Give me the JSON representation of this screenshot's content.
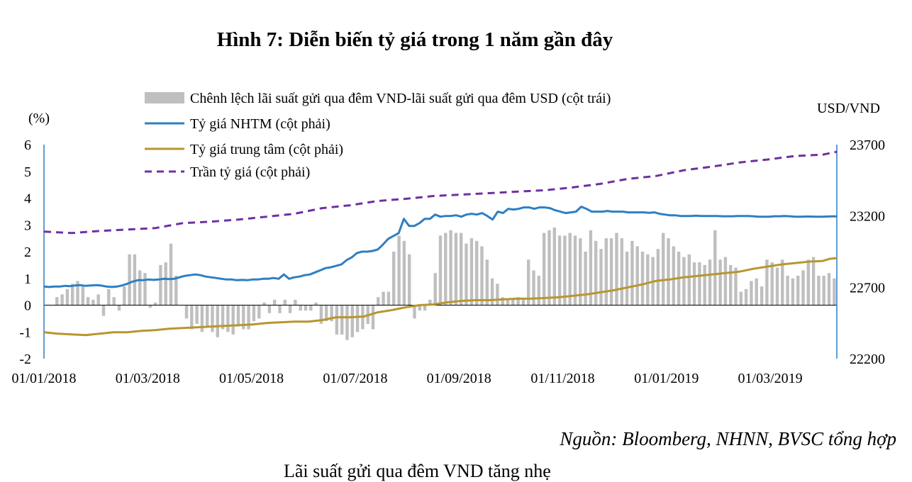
{
  "title": "Hình 7: Diễn biến tỷ giá trong 1 năm gần đây",
  "source": "Nguồn: Bloomberg, NHNN, BVSC tổng hợp",
  "colors": {
    "bar": "#bfbfbf",
    "nhtm": "#2e7fc2",
    "central": "#b8962e",
    "ceiling": "#7030a0",
    "axis": "#2e7fc2"
  },
  "chart_data": {
    "type": "combo",
    "left_axis": {
      "unit": "(%)",
      "range": [
        -2,
        6
      ],
      "ticks": [
        "6",
        "5",
        "4",
        "3",
        "2",
        "1",
        "0",
        "-1",
        "-2"
      ]
    },
    "right_axis": {
      "unit": "USD/VND",
      "range": [
        22200,
        23700
      ],
      "ticks": [
        "23700",
        "23200",
        "22700",
        "22200"
      ]
    },
    "x_ticks": [
      "01/01/2018",
      "01/03/2018",
      "01/05/2018",
      "01/07/2018",
      "01/09/2018",
      "01/11/2018",
      "01/01/2019",
      "01/03/2019"
    ],
    "legend": [
      "Chênh lệch  lãi suất gửi qua đêm VND-lãi   suất gửi qua đêm USD  (cột trái)",
      "Tỷ giá NHTM (cột phải)",
      "Tỷ giá trung tâm (cột phải)",
      "Trần tỷ giá (cột phải)"
    ],
    "series": [
      {
        "name": "Chênh lệch  lãi suất gửi qua đêm VND-lãi   suất gửi qua đêm USD  (cột trái)",
        "type": "bar",
        "axis": "left",
        "values": [
          0.0,
          0.0,
          0.3,
          0.4,
          0.6,
          0.8,
          0.9,
          0.7,
          0.3,
          0.2,
          0.4,
          -0.4,
          0.6,
          0.3,
          -0.2,
          0.7,
          1.9,
          1.9,
          1.3,
          1.2,
          -0.1,
          0.1,
          1.5,
          1.6,
          2.3,
          1.1,
          0.0,
          -0.5,
          -0.9,
          -0.7,
          -1.0,
          -0.8,
          -1.0,
          -1.2,
          -0.9,
          -1.0,
          -1.1,
          -0.8,
          -0.9,
          -0.9,
          -0.6,
          -0.5,
          0.1,
          -0.3,
          0.2,
          -0.3,
          0.2,
          -0.3,
          0.2,
          -0.2,
          -0.2,
          -0.2,
          0.1,
          -0.7,
          -0.6,
          -0.6,
          -1.1,
          -1.1,
          -1.3,
          -1.2,
          -1.0,
          -0.9,
          -0.7,
          -0.9,
          0.3,
          0.5,
          0.5,
          2.0,
          2.6,
          2.4,
          1.9,
          -0.5,
          -0.2,
          -0.2,
          0.2,
          1.2,
          2.6,
          2.7,
          2.8,
          2.7,
          2.7,
          2.3,
          2.5,
          2.4,
          2.2,
          1.7,
          1.0,
          0.8,
          0.3,
          0.2,
          0.2,
          0.3,
          0.2,
          1.7,
          1.3,
          1.1,
          2.7,
          2.8,
          2.9,
          2.6,
          2.6,
          2.7,
          2.6,
          2.5,
          2.0,
          2.8,
          2.4,
          2.1,
          2.5,
          2.5,
          2.7,
          2.5,
          2.0,
          2.4,
          2.2,
          2.0,
          1.9,
          1.8,
          2.1,
          2.7,
          2.5,
          2.2,
          2.0,
          1.8,
          1.9,
          1.6,
          1.6,
          1.5,
          1.7,
          2.8,
          1.7,
          1.8,
          1.5,
          1.4,
          0.5,
          0.6,
          0.9,
          1.0,
          0.7,
          1.7,
          1.6,
          1.4,
          1.7,
          1.1,
          1.0,
          1.1,
          1.3,
          1.7,
          1.8,
          1.1,
          1.1,
          1.2,
          1.0
        ]
      },
      {
        "name": "Tỷ giá NHTM (cột phải)",
        "type": "line",
        "axis": "right",
        "x": [
          0,
          3,
          6,
          9,
          12,
          15,
          18,
          21,
          24,
          27,
          30,
          33,
          36,
          39,
          42,
          45,
          48,
          51,
          54,
          57,
          60,
          63,
          66,
          69,
          72,
          75,
          78,
          81,
          84,
          87,
          90,
          93,
          96,
          99,
          102,
          105,
          108,
          111,
          114,
          117,
          120,
          123,
          126,
          129,
          132,
          135,
          138,
          141,
          144,
          147,
          150,
          153,
          156,
          159,
          162,
          165,
          168,
          171,
          174,
          177,
          180,
          183,
          186,
          189,
          192,
          195,
          198,
          201,
          204,
          207,
          210,
          213,
          216,
          219,
          222,
          225,
          228,
          231,
          234,
          237,
          240,
          243,
          246,
          249,
          252,
          255,
          258,
          261,
          264,
          267,
          270,
          273,
          276,
          279,
          282,
          285,
          288,
          291,
          294,
          297,
          300,
          303,
          306,
          309,
          312,
          315,
          318,
          321,
          324,
          327,
          330,
          333,
          336,
          339,
          342,
          345,
          348,
          351,
          354,
          357,
          360,
          363,
          366,
          369,
          372,
          375,
          378,
          381,
          384,
          387,
          390,
          393,
          396,
          399,
          402,
          405,
          408,
          411,
          414,
          417,
          420,
          423,
          426,
          429,
          432,
          435,
          438,
          441,
          444,
          447,
          450,
          453,
          456
        ],
        "values": [
          22705,
          22702,
          22705,
          22705,
          22710,
          22708,
          22713,
          22715,
          22710,
          22713,
          22715,
          22712,
          22705,
          22702,
          22705,
          22713,
          22725,
          22740,
          22750,
          22750,
          22755,
          22752,
          22755,
          22760,
          22758,
          22760,
          22770,
          22780,
          22785,
          22790,
          22785,
          22775,
          22770,
          22765,
          22760,
          22755,
          22755,
          22750,
          22752,
          22750,
          22755,
          22755,
          22760,
          22760,
          22765,
          22760,
          22790,
          22760,
          22770,
          22775,
          22785,
          22790,
          22805,
          22820,
          22835,
          22840,
          22850,
          22860,
          22890,
          22910,
          22940,
          22950,
          22950,
          22955,
          22965,
          23000,
          23040,
          23060,
          23080,
          23180,
          23130,
          23130,
          23150,
          23180,
          23180,
          23210,
          23195,
          23200,
          23200,
          23205,
          23195,
          23210,
          23215,
          23210,
          23220,
          23200,
          23175,
          23230,
          23220,
          23250,
          23245,
          23250,
          23260,
          23260,
          23250,
          23260,
          23260,
          23255,
          23240,
          23230,
          23220,
          23225,
          23230,
          23265,
          23250,
          23230,
          23230,
          23230,
          23235,
          23230,
          23230,
          23230,
          23225,
          23225,
          23225,
          23225,
          23222,
          23225,
          23215,
          23210,
          23205,
          23205,
          23200,
          23200,
          23200,
          23202,
          23200,
          23200,
          23200,
          23200,
          23198,
          23198,
          23198,
          23200,
          23200,
          23200,
          23198,
          23195,
          23195,
          23195,
          23198,
          23198,
          23200,
          23198,
          23195,
          23195,
          23196,
          23196,
          23195,
          23195,
          23196,
          23197,
          23197
        ]
      },
      {
        "name": "Tỷ giá trung tâm (cột phải)",
        "type": "line",
        "axis": "right",
        "x": [
          0,
          8,
          16,
          24,
          32,
          40,
          48,
          56,
          64,
          72,
          80,
          88,
          96,
          104,
          112,
          120,
          128,
          136,
          144,
          152,
          160,
          168,
          176,
          184,
          192,
          200,
          208,
          216,
          224,
          232,
          240,
          248,
          256,
          264,
          272,
          280,
          288,
          296,
          304,
          312,
          320,
          328,
          336,
          344,
          352,
          360,
          368,
          376,
          384,
          392,
          400,
          408,
          416,
          424,
          432,
          440,
          448,
          452,
          456
        ],
        "values": [
          22385,
          22375,
          22370,
          22365,
          22375,
          22385,
          22385,
          22395,
          22400,
          22410,
          22415,
          22420,
          22425,
          22430,
          22435,
          22440,
          22450,
          22455,
          22460,
          22460,
          22470,
          22490,
          22490,
          22495,
          22525,
          22540,
          22560,
          22575,
          22580,
          22595,
          22605,
          22610,
          22610,
          22615,
          22620,
          22620,
          22625,
          22630,
          22640,
          22650,
          22665,
          22680,
          22700,
          22720,
          22745,
          22755,
          22770,
          22780,
          22790,
          22800,
          22810,
          22830,
          22845,
          22860,
          22870,
          22880,
          22885,
          22900,
          22905
        ]
      },
      {
        "name": "Trần tỷ giá (cột phải)",
        "type": "line",
        "axis": "right",
        "dashed": true,
        "x": [
          0,
          16,
          32,
          48,
          64,
          80,
          96,
          112,
          128,
          144,
          160,
          176,
          192,
          208,
          224,
          240,
          256,
          272,
          288,
          304,
          320,
          336,
          352,
          368,
          384,
          400,
          416,
          432,
          448,
          456
        ],
        "values": [
          23090,
          23080,
          23095,
          23105,
          23115,
          23150,
          23160,
          23175,
          23195,
          23215,
          23255,
          23275,
          23305,
          23320,
          23340,
          23350,
          23360,
          23370,
          23380,
          23400,
          23425,
          23460,
          23480,
          23520,
          23545,
          23575,
          23595,
          23620,
          23630,
          23650
        ]
      }
    ]
  },
  "cutoff_text": "Lãi suất gửi qua đêm VND tăng nhẹ"
}
